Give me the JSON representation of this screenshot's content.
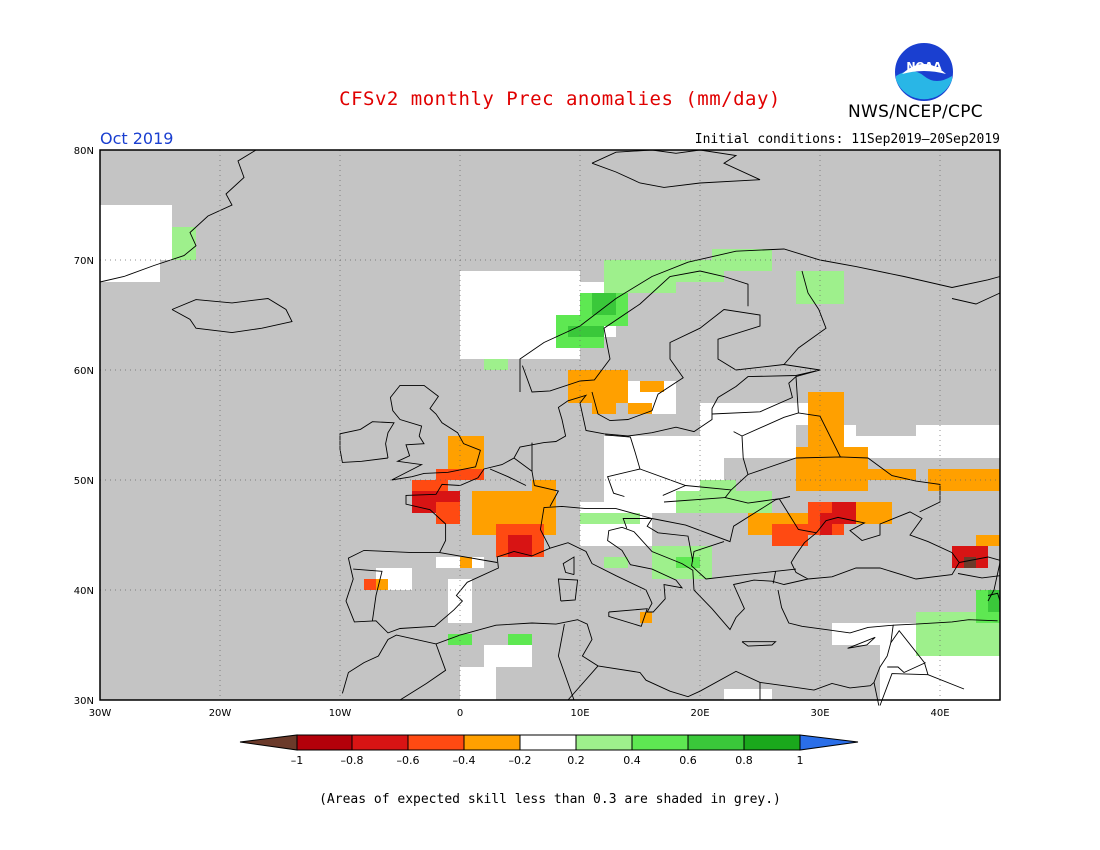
{
  "header": {
    "title": "CFSv2 monthly Prec anomalies (mm/day)",
    "agency": "NWS/NCEP/CPC",
    "month": "Oct 2019",
    "initial_conditions": "Initial conditions: 11Sep2019–20Sep2019",
    "logo_text": "NOAA"
  },
  "footnote": "(Areas of expected skill less than 0.3 are shaded in grey.)",
  "colors": {
    "grey_low_skill": "#c4c4c4",
    "neg_1": "#6b3a2a",
    "neg_08": "#b3000a",
    "neg_06": "#d81414",
    "neg_04": "#ff4a12",
    "neg_02": "#ffa000",
    "neutral": "#ffffff",
    "pos_02": "#9ef08c",
    "pos_04": "#5ee852",
    "pos_06": "#3ac83a",
    "pos_08": "#1aa81c",
    "pos_1": "#2a6ee8"
  },
  "map": {
    "projection": "lat-lon",
    "lon_range": [
      -30,
      45
    ],
    "lat_range": [
      30,
      80
    ],
    "lon_ticks": [
      "30W",
      "20W",
      "10W",
      "0",
      "10E",
      "20E",
      "30E",
      "40E"
    ],
    "lat_ticks": [
      "30N",
      "40N",
      "50N",
      "60N",
      "70N",
      "80N"
    ],
    "grid": true
  },
  "colorbar": {
    "labels": [
      "–1",
      "–0.8",
      "–0.6",
      "–0.4",
      "–0.2",
      "0.2",
      "0.4",
      "0.6",
      "0.8",
      "1"
    ]
  }
}
